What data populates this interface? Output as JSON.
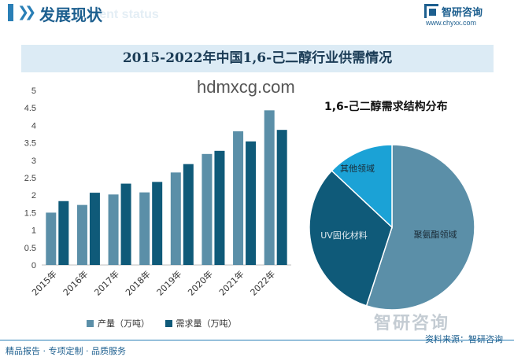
{
  "header": {
    "title": "发展现状",
    "ghost_text": "ment status",
    "logo_name": "智研咨询",
    "logo_url": "www.chyxx.com"
  },
  "watermark_text": "hdmxcg.com",
  "brand_watermark": "智研咨询",
  "colors": {
    "production": "#5b8fa8",
    "demand": "#0f5a79",
    "pie_polyurethane": "#5b8fa8",
    "pie_uv": "#0f5a79",
    "pie_other": "#1ba2d6",
    "header_accent": "#2a7fb6",
    "title_band_bg": "#dcebf5"
  },
  "chart_data": [
    {
      "type": "bar",
      "title": "2015-2022年中国1,6-己二醇行业供需情况",
      "categories": [
        "2015年",
        "2016年",
        "2017年",
        "2018年",
        "2019年",
        "2020年",
        "2021年",
        "2022年"
      ],
      "series": [
        {
          "name": "产量（万吨）",
          "values": [
            1.5,
            1.72,
            2.02,
            2.08,
            2.65,
            3.18,
            3.83,
            4.43
          ]
        },
        {
          "name": "需求量（万吨）",
          "values": [
            1.83,
            2.07,
            2.33,
            2.38,
            2.89,
            3.27,
            3.54,
            3.87
          ]
        }
      ],
      "yticks": [
        "0",
        "0.5",
        "1",
        "1.5",
        "2",
        "2.5",
        "3",
        "3.5",
        "4",
        "4.5",
        "5"
      ],
      "ylim": [
        0,
        5
      ],
      "grid": false,
      "legend_position": "bottom"
    },
    {
      "type": "pie",
      "title": "1,6-己二醇需求结构分布",
      "slices": [
        {
          "label": "聚氨酯领域",
          "value": 55
        },
        {
          "label": "UV固化材料",
          "value": 32
        },
        {
          "label": "其他领域",
          "value": 13
        }
      ]
    }
  ],
  "footer": {
    "left": "精品报告 · 专项定制 · 品质服务",
    "right": "资料来源：智研咨询"
  }
}
